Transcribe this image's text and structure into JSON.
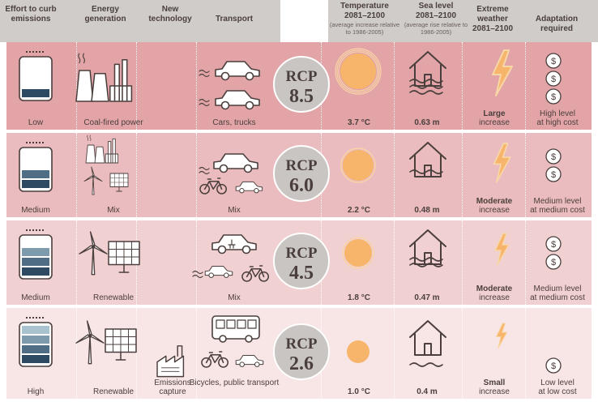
{
  "headers": {
    "effort": "Effort to curb emissions",
    "energy": "Energy generation",
    "newtech": "New technology",
    "transport": "Transport",
    "temperature": "Temperature",
    "temperature_period": "2081–2100",
    "temperature_note": "(average increase relative to 1986-2005)",
    "sealevel": "Sea level",
    "sealevel_period": "2081–2100",
    "sealevel_note": "(average rise relative to 1986-2005)",
    "weather": "Extreme weather",
    "weather_period": "2081–2100",
    "adaptation": "Adaptation required"
  },
  "rows": [
    {
      "rcp_label": "RCP",
      "rcp_value": "8.5",
      "effort": "Low",
      "effort_level": 0.25,
      "energy": "Coal-fired power",
      "newtech": "",
      "transport": "Cars, trucks",
      "temperature": "3.7 °C",
      "sealevel": "0.63 m",
      "weather_level": "Large",
      "weather_suffix": "increase",
      "adaptation_level": "High level",
      "adaptation_cost": "at high cost",
      "cost_coins": 3,
      "bg": "#e3a4a8"
    },
    {
      "rcp_label": "RCP",
      "rcp_value": "6.0",
      "effort": "Medium",
      "effort_level": 0.5,
      "energy": "Mix",
      "newtech": "",
      "transport": "Mix",
      "temperature": "2.2 °C",
      "sealevel": "0.48 m",
      "weather_level": "Moderate",
      "weather_suffix": "increase",
      "adaptation_level": "Medium level",
      "adaptation_cost": "at medium cost",
      "cost_coins": 2,
      "bg": "#ebbcbf"
    },
    {
      "rcp_label": "RCP",
      "rcp_value": "4.5",
      "effort": "Medium",
      "effort_level": 0.75,
      "energy": "Renewable",
      "newtech": "",
      "transport": "Mix",
      "temperature": "1.8 °C",
      "sealevel": "0.47 m",
      "weather_level": "Moderate",
      "weather_suffix": "increase",
      "adaptation_level": "Medium level",
      "adaptation_cost": "at medium cost",
      "cost_coins": 2,
      "bg": "#f1d0d2"
    },
    {
      "rcp_label": "RCP",
      "rcp_value": "2.6",
      "effort": "High",
      "effort_level": 1.0,
      "energy": "Renewable",
      "newtech": "Emissions capture",
      "transport": "Bicycles, public transport",
      "temperature": "1.0 °C",
      "sealevel": "0.4 m",
      "weather_level": "Small",
      "weather_suffix": "increase",
      "adaptation_level": "Low level",
      "adaptation_cost": "at low cost",
      "cost_coins": 1,
      "bg": "#f8e5e6"
    }
  ],
  "colors": {
    "ink": "#4a3f3c",
    "rcp_circle": "#c9c5c2",
    "sun": "#f6b56b",
    "lightning": "#f6b56b"
  },
  "icons": [
    "battery-icon",
    "power-plant-icon",
    "wind-turbine-icon",
    "solar-panel-icon",
    "car-icon",
    "truck-icon",
    "bicycle-icon",
    "bus-icon",
    "electric-car-icon",
    "factory-capture-icon",
    "sun-icon",
    "house-flood-icon",
    "lightning-icon",
    "dollar-coin-icon"
  ]
}
